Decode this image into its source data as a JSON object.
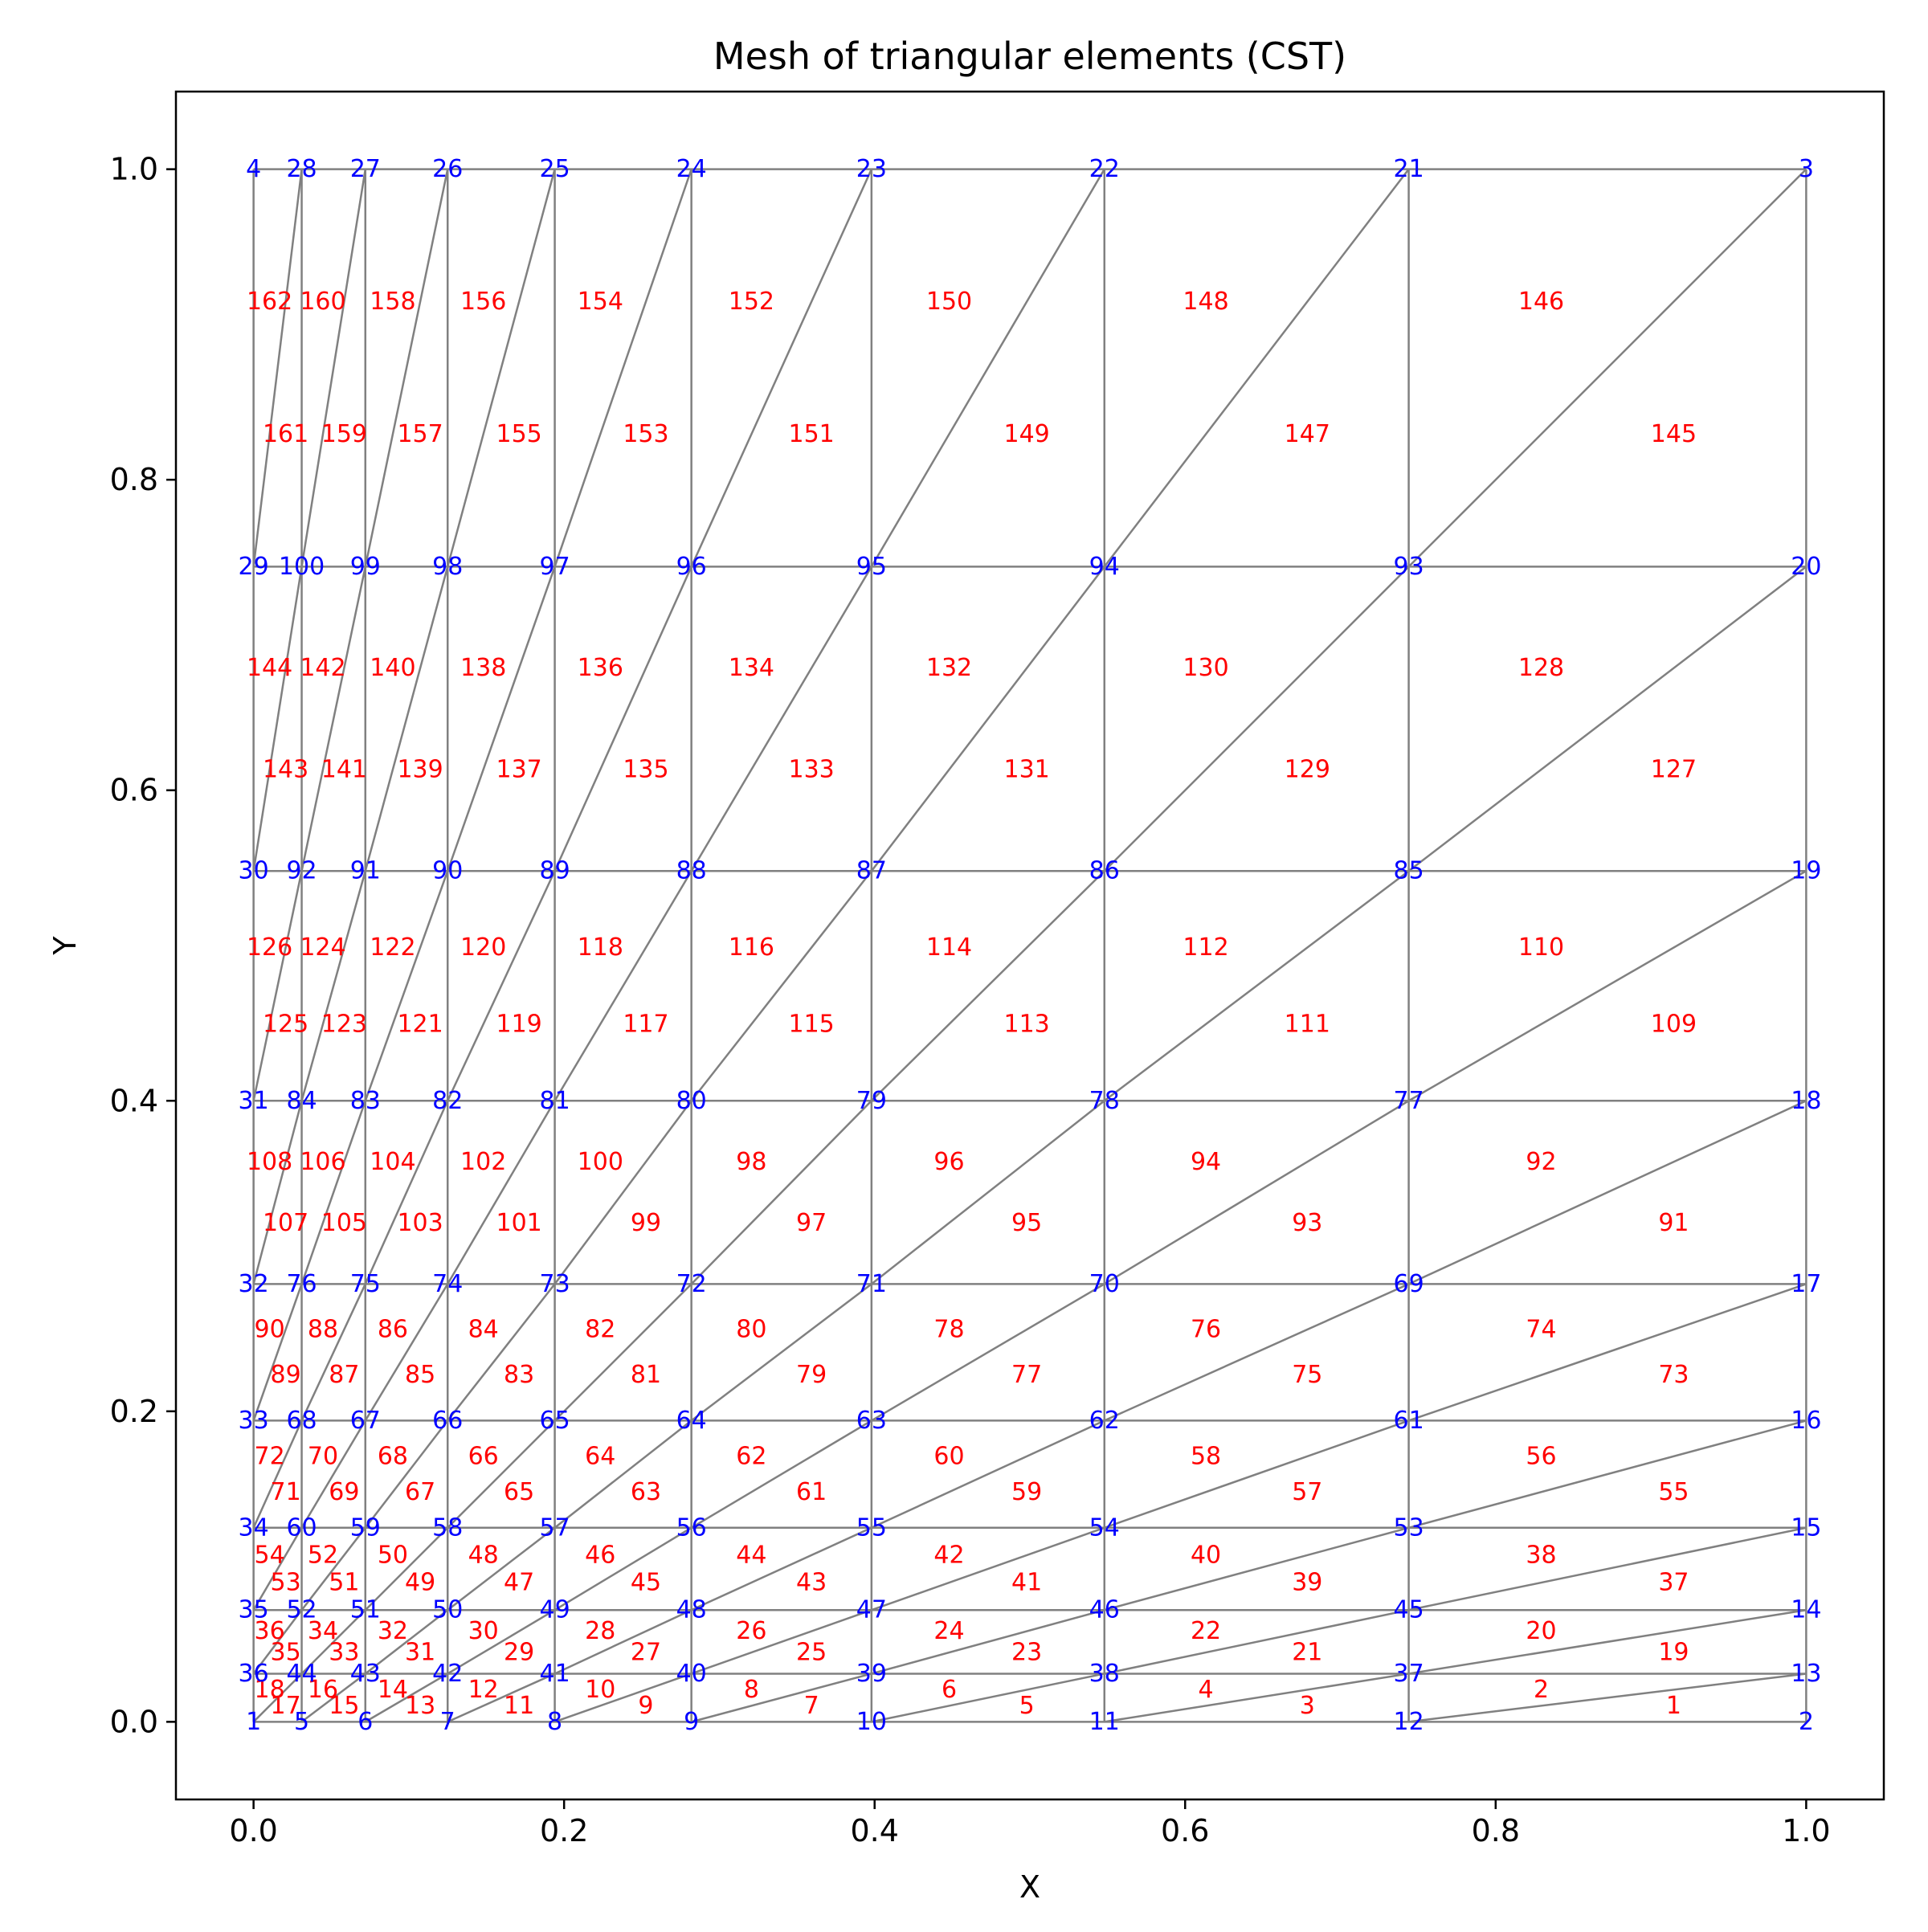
{
  "chart_data": {
    "type": "mesh",
    "title": "Mesh of triangular elements (CST)",
    "xlabel": "X",
    "ylabel": "Y",
    "xlim": [
      -0.05,
      1.05
    ],
    "ylim": [
      -0.05,
      1.05
    ],
    "xticks": [
      0.0,
      0.2,
      0.4,
      0.6,
      0.8,
      1.0
    ],
    "yticks": [
      0.0,
      0.2,
      0.4,
      0.6,
      0.8,
      1.0
    ],
    "xtick_labels": [
      "0.0",
      "0.2",
      "0.4",
      "0.6",
      "0.8",
      "1.0"
    ],
    "ytick_labels": [
      "0.0",
      "0.2",
      "0.4",
      "0.6",
      "0.8",
      "1.0"
    ],
    "grid": false,
    "colors": {
      "mesh": "#808080",
      "node_labels": "#0000ff",
      "element_labels": "#ff0000"
    },
    "x_grid": [
      0.0,
      0.031,
      0.072,
      0.125,
      0.194,
      0.282,
      0.398,
      0.548,
      0.744,
      1.0
    ],
    "y_grid": [
      0.0,
      0.031,
      0.072,
      0.125,
      0.194,
      0.282,
      0.4,
      0.548,
      0.744,
      1.0
    ],
    "node_grid": [
      [
        1,
        5,
        6,
        7,
        8,
        9,
        10,
        11,
        12,
        2
      ],
      [
        36,
        44,
        43,
        42,
        41,
        40,
        39,
        38,
        37,
        13
      ],
      [
        35,
        52,
        51,
        50,
        49,
        48,
        47,
        46,
        45,
        14
      ],
      [
        34,
        60,
        59,
        58,
        57,
        56,
        55,
        54,
        53,
        15
      ],
      [
        33,
        68,
        67,
        66,
        65,
        64,
        63,
        62,
        61,
        16
      ],
      [
        32,
        76,
        75,
        74,
        73,
        72,
        71,
        70,
        69,
        17
      ],
      [
        31,
        84,
        83,
        82,
        81,
        80,
        79,
        78,
        77,
        18
      ],
      [
        30,
        92,
        91,
        90,
        89,
        88,
        87,
        86,
        85,
        19
      ],
      [
        29,
        100,
        99,
        98,
        97,
        96,
        95,
        94,
        93,
        20
      ],
      [
        4,
        28,
        27,
        26,
        25,
        24,
        23,
        22,
        21,
        3
      ]
    ],
    "element_numbering": "row-major from bottom, columns right-to-left, lower triangle odd / upper triangle even"
  }
}
